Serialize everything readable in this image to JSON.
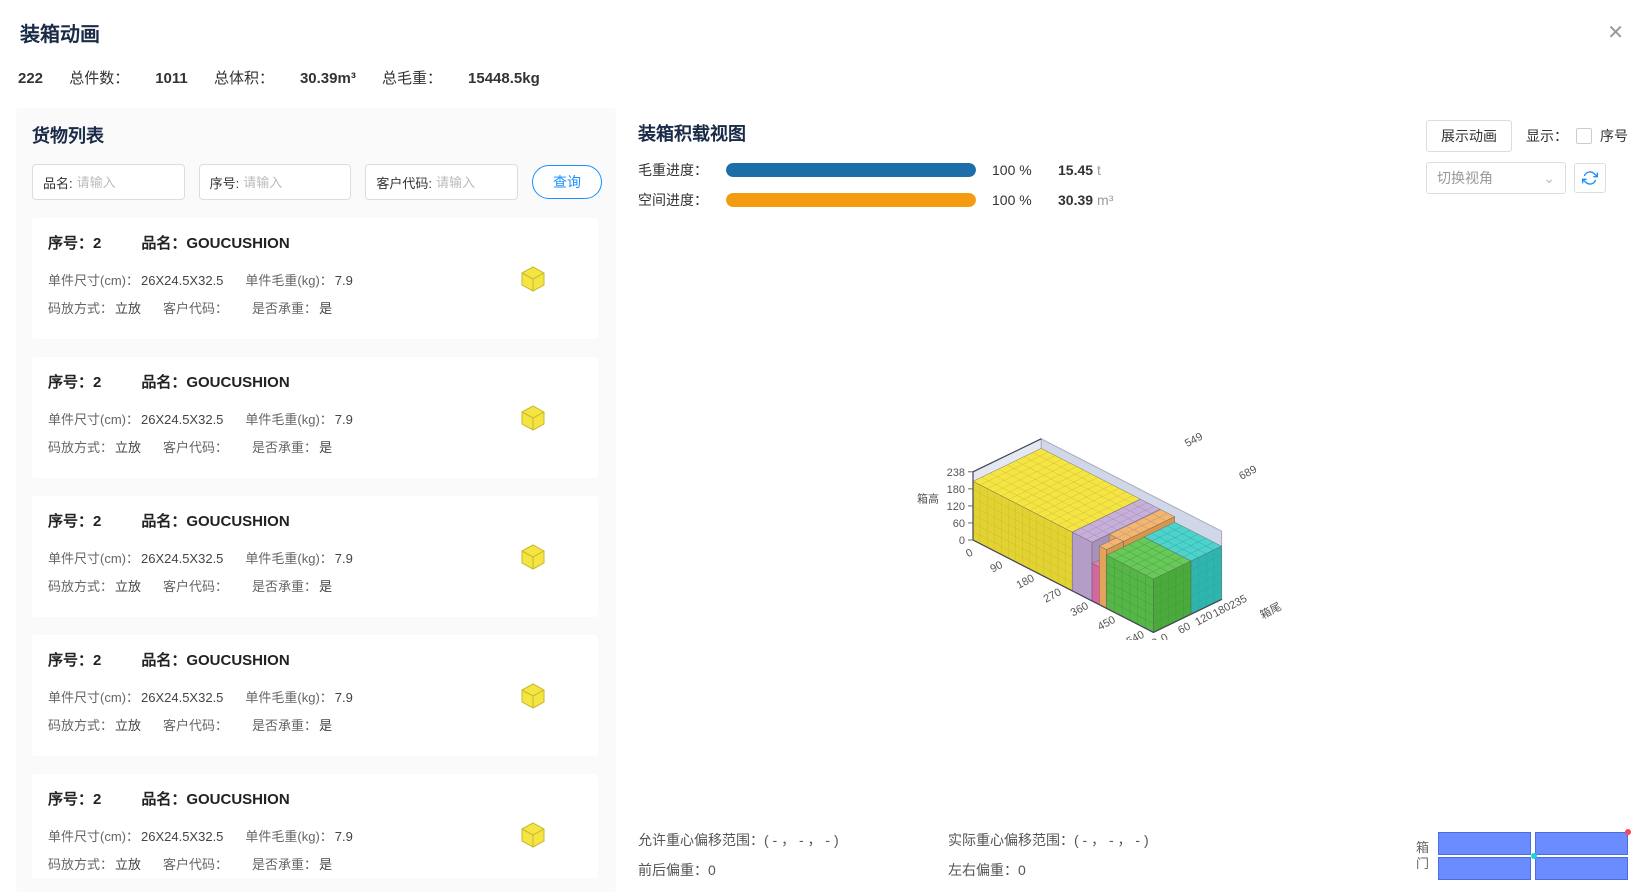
{
  "title": "装箱动画",
  "summary": {
    "id": "222",
    "qty_label": "总件数：",
    "qty": "1011",
    "vol_label": "总体积：",
    "vol": "30.39m³",
    "weight_label": "总毛重：",
    "weight": "15448.5kg"
  },
  "left": {
    "title": "货物列表",
    "filters": {
      "name_label": "品名:",
      "name_placeholder": "请输入",
      "seq_label": "序号:",
      "seq_placeholder": "请输入",
      "cust_label": "客户代码:",
      "cust_placeholder": "请输入",
      "query": "查询"
    },
    "item_labels": {
      "seq": "序号：",
      "name": "品名：",
      "dim": "单件尺寸(cm)：",
      "unit_weight": "单件毛重(kg)：",
      "placement": "码放方式：",
      "cust": "客户代码：",
      "bearing": "是否承重："
    },
    "items": [
      {
        "seq": "2",
        "name": "GOUCUSHION",
        "dim": "26X24.5X32.5",
        "unit_weight": "7.9",
        "placement": "立放",
        "cust": "",
        "bearing": "是"
      },
      {
        "seq": "2",
        "name": "GOUCUSHION",
        "dim": "26X24.5X32.5",
        "unit_weight": "7.9",
        "placement": "立放",
        "cust": "",
        "bearing": "是"
      },
      {
        "seq": "2",
        "name": "GOUCUSHION",
        "dim": "26X24.5X32.5",
        "unit_weight": "7.9",
        "placement": "立放",
        "cust": "",
        "bearing": "是"
      },
      {
        "seq": "2",
        "name": "GOUCUSHION",
        "dim": "26X24.5X32.5",
        "unit_weight": "7.9",
        "placement": "立放",
        "cust": "",
        "bearing": "是"
      },
      {
        "seq": "2",
        "name": "GOUCUSHION",
        "dim": "26X24.5X32.5",
        "unit_weight": "7.9",
        "placement": "立放",
        "cust": "",
        "bearing": "是"
      }
    ],
    "item_icon_color": "#f4e542"
  },
  "right": {
    "title": "装箱积载视图",
    "anim_btn": "展示动画",
    "show_label": "显示：",
    "seq_label": "序号",
    "view_placeholder": "切换视角",
    "progress": {
      "weight": {
        "label": "毛重进度：",
        "pct": "100 %",
        "value": "15.45",
        "unit": "t",
        "color": "#1b6ea8"
      },
      "space": {
        "label": "空间进度：",
        "pct": "100 %",
        "value": "30.39",
        "unit": "m³",
        "color": "#f39c12"
      }
    },
    "viz": {
      "axis_z": {
        "ticks": [
          "0",
          "60",
          "120",
          "180",
          "238"
        ],
        "label": "箱高"
      },
      "axis_x": {
        "ticks": [
          "0",
          "90",
          "180",
          "270",
          "360",
          "450",
          "540",
          "589"
        ]
      },
      "axis_y": {
        "ticks": [
          "0",
          "60",
          "120",
          "180",
          "235"
        ],
        "far": [
          "549",
          "689"
        ],
        "label": "箱尾"
      },
      "colors": {
        "yellow": "#f5e544",
        "green": "#69c85a",
        "cyan": "#4dd3cc",
        "orange": "#f5b56b",
        "pink": "#e877b5",
        "purple": "#c6b0da",
        "blue_floor": "#7a9be6",
        "wall": "#d0d7e8",
        "edge": "#5a5a5a"
      }
    },
    "footer": {
      "allow_label": "允许重心偏移范围：",
      "allow_val": "( - ， - ， - )",
      "actual_label": "实际重心偏移范围：",
      "actual_val": "( - ， - ， - )",
      "fb_label": "前后偏重：",
      "fb_val": "0",
      "lr_label": "左右偏重：",
      "lr_val": "0",
      "door_label": "箱门"
    },
    "mini": {
      "fill": "#6b8cff",
      "center": "#1bd3d8"
    }
  }
}
